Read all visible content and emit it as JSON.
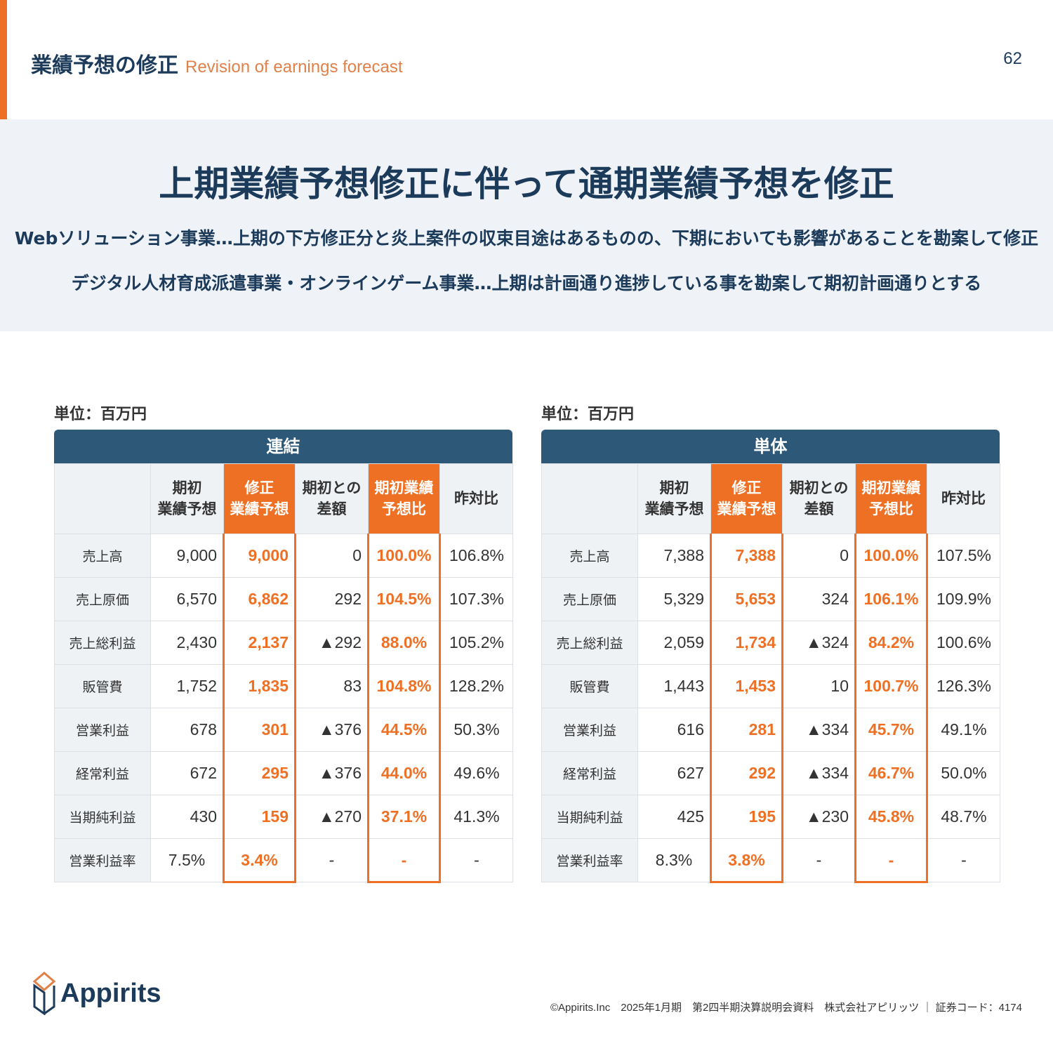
{
  "header": {
    "title": "業績予想の修正",
    "title_en": "Revision of earnings forecast",
    "page": "62"
  },
  "banner": {
    "headline": "上期業績予想修正に伴って通期業績予想を修正",
    "lines": [
      "Webソリューション事業…上期の下方修正分と炎上案件の収束目途はあるものの、下期においても影響があることを勘案して修正",
      "デジタル人材育成派遣事業・オンラインゲーム事業…上期は計画通り進捗している事を勘案して期初計画通りとする"
    ]
  },
  "colors": {
    "accent": "#ee7024",
    "navy": "#2e5878"
  },
  "columns": [
    "",
    "期初\n業績予想",
    "修正\n業績予想",
    "期初との\n差額",
    "期初業績\n予想比",
    "昨対比"
  ],
  "tables": [
    {
      "unit": "単位：百万円",
      "caption": "連結",
      "rows": [
        [
          "売上高",
          "9,000",
          "9,000",
          "0",
          "100.0%",
          "106.8%"
        ],
        [
          "売上原価",
          "6,570",
          "6,862",
          "292",
          "104.5%",
          "107.3%"
        ],
        [
          "売上総利益",
          "2,430",
          "2,137",
          "▲292",
          "88.0%",
          "105.2%"
        ],
        [
          "販管費",
          "1,752",
          "1,835",
          "83",
          "104.8%",
          "128.2%"
        ],
        [
          "営業利益",
          "678",
          "301",
          "▲376",
          "44.5%",
          "50.3%"
        ],
        [
          "経常利益",
          "672",
          "295",
          "▲376",
          "44.0%",
          "49.6%"
        ],
        [
          "当期純利益",
          "430",
          "159",
          "▲270",
          "37.1%",
          "41.3%"
        ],
        [
          "営業利益率",
          "7.5%",
          "3.4%",
          "-",
          "-",
          "-"
        ]
      ]
    },
    {
      "unit": "単位：百万円",
      "caption": "単体",
      "rows": [
        [
          "売上高",
          "7,388",
          "7,388",
          "0",
          "100.0%",
          "107.5%"
        ],
        [
          "売上原価",
          "5,329",
          "5,653",
          "324",
          "106.1%",
          "109.9%"
        ],
        [
          "売上総利益",
          "2,059",
          "1,734",
          "▲324",
          "84.2%",
          "100.6%"
        ],
        [
          "販管費",
          "1,443",
          "1,453",
          "10",
          "100.7%",
          "126.3%"
        ],
        [
          "営業利益",
          "616",
          "281",
          "▲334",
          "45.7%",
          "49.1%"
        ],
        [
          "経常利益",
          "627",
          "292",
          "▲334",
          "46.7%",
          "50.0%"
        ],
        [
          "当期純利益",
          "425",
          "195",
          "▲230",
          "45.8%",
          "48.7%"
        ],
        [
          "営業利益率",
          "8.3%",
          "3.8%",
          "-",
          "-",
          "-"
        ]
      ]
    }
  ],
  "logo": {
    "text": "Appirits"
  },
  "footer": "©Appirits.Inc　2025年1月期　第2四半期決算説明会資料　株式会社アピリッツ ｜ 証券コード：4174"
}
